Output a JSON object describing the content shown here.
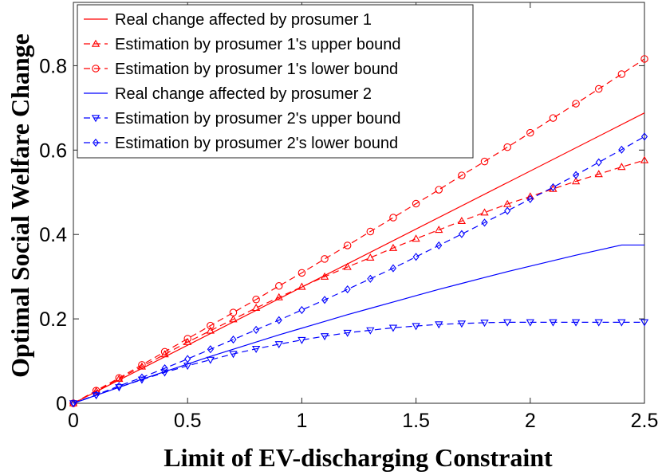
{
  "chart_data": {
    "type": "line",
    "xlabel": "Limit of EV-discharging Constraint",
    "ylabel": "Optimal Social Welfare Change",
    "xlim": [
      0,
      2.5
    ],
    "ylim": [
      0,
      0.95
    ],
    "x_ticks": [
      0,
      0.5,
      1,
      1.5,
      2,
      2.5
    ],
    "x_tick_labels": [
      "0",
      "0.5",
      "1",
      "1.5",
      "2",
      "2.5"
    ],
    "y_ticks": [
      0,
      0.2,
      0.4,
      0.6,
      0.8
    ],
    "y_tick_labels": [
      "0",
      "0.2",
      "0.4",
      "0.6",
      "0.8"
    ],
    "grid": false,
    "legend_position": "top-left",
    "x": [
      0,
      0.1,
      0.2,
      0.3,
      0.4,
      0.5,
      0.6,
      0.7,
      0.8,
      0.9,
      1.0,
      1.1,
      1.2,
      1.3,
      1.4,
      1.5,
      1.6,
      1.7,
      1.8,
      1.9,
      2.0,
      2.1,
      2.2,
      2.3,
      2.4,
      2.5
    ],
    "series": [
      {
        "name": "Real change affected by prosumer 1",
        "color": "#ff0000",
        "line_style": "solid",
        "marker": "none",
        "x": [
          0,
          2.5
        ],
        "values": [
          0,
          0.688
        ]
      },
      {
        "name": "Estimation by prosumer 1's upper bound",
        "color": "#ff0000",
        "line_style": "dashed",
        "marker": "triangle-up",
        "values": [
          0,
          0.029,
          0.058,
          0.087,
          0.116,
          0.145,
          0.172,
          0.199,
          0.226,
          0.251,
          0.276,
          0.3,
          0.323,
          0.345,
          0.368,
          0.39,
          0.411,
          0.432,
          0.452,
          0.472,
          0.49,
          0.508,
          0.526,
          0.543,
          0.56,
          0.576
        ]
      },
      {
        "name": "Estimation by prosumer 1's lower bound",
        "color": "#ff0000",
        "line_style": "dashed",
        "marker": "circle",
        "values": [
          0,
          0.03,
          0.06,
          0.091,
          0.122,
          0.153,
          0.184,
          0.215,
          0.246,
          0.278,
          0.309,
          0.342,
          0.374,
          0.407,
          0.44,
          0.473,
          0.506,
          0.54,
          0.573,
          0.607,
          0.641,
          0.676,
          0.71,
          0.745,
          0.78,
          0.816
        ]
      },
      {
        "name": "Real change affected by prosumer 2",
        "color": "#0000ff",
        "line_style": "solid",
        "marker": "none",
        "values": [
          0,
          0.019,
          0.038,
          0.057,
          0.075,
          0.093,
          0.111,
          0.128,
          0.145,
          0.162,
          0.178,
          0.194,
          0.21,
          0.225,
          0.24,
          0.255,
          0.27,
          0.284,
          0.298,
          0.312,
          0.325,
          0.338,
          0.351,
          0.363,
          0.375,
          0.375
        ]
      },
      {
        "name": "Estimation by prosumer 2's upper bound",
        "color": "#0000ff",
        "line_style": "dashed",
        "marker": "triangle-down",
        "values": [
          0,
          0.019,
          0.038,
          0.056,
          0.073,
          0.089,
          0.103,
          0.117,
          0.129,
          0.14,
          0.15,
          0.159,
          0.167,
          0.173,
          0.179,
          0.183,
          0.187,
          0.189,
          0.191,
          0.192,
          0.192,
          0.192,
          0.192,
          0.192,
          0.192,
          0.192
        ]
      },
      {
        "name": "Estimation by prosumer 2's lower bound",
        "color": "#0000ff",
        "line_style": "dashed",
        "marker": "diamond",
        "values": [
          0,
          0.02,
          0.041,
          0.061,
          0.083,
          0.105,
          0.128,
          0.151,
          0.174,
          0.197,
          0.221,
          0.245,
          0.27,
          0.295,
          0.32,
          0.347,
          0.374,
          0.401,
          0.428,
          0.456,
          0.484,
          0.512,
          0.541,
          0.571,
          0.601,
          0.632
        ]
      }
    ]
  }
}
